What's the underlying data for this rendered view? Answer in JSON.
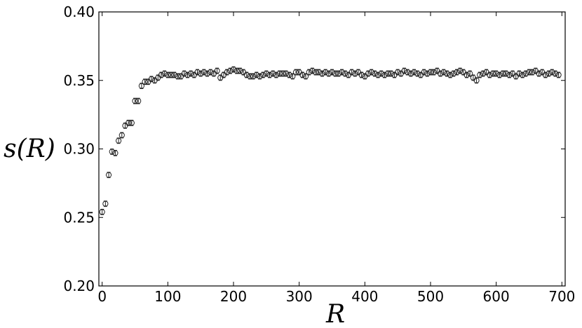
{
  "chart_data": {
    "type": "scatter",
    "title": "",
    "xlabel": "R",
    "ylabel": "s(R)",
    "xlim": [
      -5,
      705
    ],
    "ylim": [
      0.2,
      0.4
    ],
    "grid": false,
    "legend": "none",
    "marker": "open-circle-with-errorbars",
    "x_ticks": [
      "0",
      "100",
      "200",
      "300",
      "400",
      "500",
      "600",
      "700"
    ],
    "y_ticks": [
      "0.20",
      "0.25",
      "0.30",
      "0.35",
      "0.40"
    ],
    "x": [
      0,
      5,
      10,
      15,
      20,
      25,
      30,
      35,
      40,
      45,
      50,
      55,
      60,
      65,
      70,
      75,
      80,
      85,
      90,
      95,
      100,
      105,
      110,
      115,
      120,
      125,
      130,
      135,
      140,
      145,
      150,
      155,
      160,
      165,
      170,
      175,
      180,
      185,
      190,
      195,
      200,
      205,
      210,
      215,
      220,
      225,
      230,
      235,
      240,
      245,
      250,
      255,
      260,
      265,
      270,
      275,
      280,
      285,
      290,
      295,
      300,
      305,
      310,
      315,
      320,
      325,
      330,
      335,
      340,
      345,
      350,
      355,
      360,
      365,
      370,
      375,
      380,
      385,
      390,
      395,
      400,
      405,
      410,
      415,
      420,
      425,
      430,
      435,
      440,
      445,
      450,
      455,
      460,
      465,
      470,
      475,
      480,
      485,
      490,
      495,
      500,
      505,
      510,
      515,
      520,
      525,
      530,
      535,
      540,
      545,
      550,
      555,
      560,
      565,
      570,
      575,
      580,
      585,
      590,
      595,
      600,
      605,
      610,
      615,
      620,
      625,
      630,
      635,
      640,
      645,
      650,
      655,
      660,
      665,
      670,
      675,
      680,
      685,
      690,
      695
    ],
    "y": [
      0.254,
      0.26,
      0.281,
      0.298,
      0.297,
      0.306,
      0.31,
      0.317,
      0.319,
      0.319,
      0.335,
      0.335,
      0.346,
      0.349,
      0.349,
      0.351,
      0.35,
      0.352,
      0.354,
      0.355,
      0.354,
      0.354,
      0.354,
      0.353,
      0.353,
      0.355,
      0.354,
      0.355,
      0.354,
      0.356,
      0.355,
      0.356,
      0.355,
      0.356,
      0.355,
      0.357,
      0.352,
      0.354,
      0.356,
      0.357,
      0.358,
      0.357,
      0.357,
      0.356,
      0.354,
      0.353,
      0.353,
      0.354,
      0.353,
      0.354,
      0.355,
      0.354,
      0.355,
      0.354,
      0.355,
      0.355,
      0.355,
      0.354,
      0.353,
      0.356,
      0.356,
      0.354,
      0.353,
      0.356,
      0.357,
      0.356,
      0.356,
      0.355,
      0.356,
      0.355,
      0.356,
      0.355,
      0.355,
      0.356,
      0.355,
      0.354,
      0.356,
      0.355,
      0.356,
      0.354,
      0.353,
      0.355,
      0.356,
      0.355,
      0.354,
      0.355,
      0.354,
      0.355,
      0.355,
      0.354,
      0.356,
      0.355,
      0.357,
      0.356,
      0.355,
      0.356,
      0.355,
      0.354,
      0.356,
      0.355,
      0.356,
      0.356,
      0.357,
      0.355,
      0.356,
      0.355,
      0.354,
      0.355,
      0.356,
      0.357,
      0.356,
      0.354,
      0.355,
      0.352,
      0.35,
      0.354,
      0.355,
      0.356,
      0.354,
      0.355,
      0.355,
      0.354,
      0.355,
      0.355,
      0.354,
      0.355,
      0.353,
      0.355,
      0.354,
      0.355,
      0.356,
      0.356,
      0.357,
      0.355,
      0.356,
      0.354,
      0.355,
      0.356,
      0.355,
      0.354
    ],
    "yerr": 0.002
  }
}
